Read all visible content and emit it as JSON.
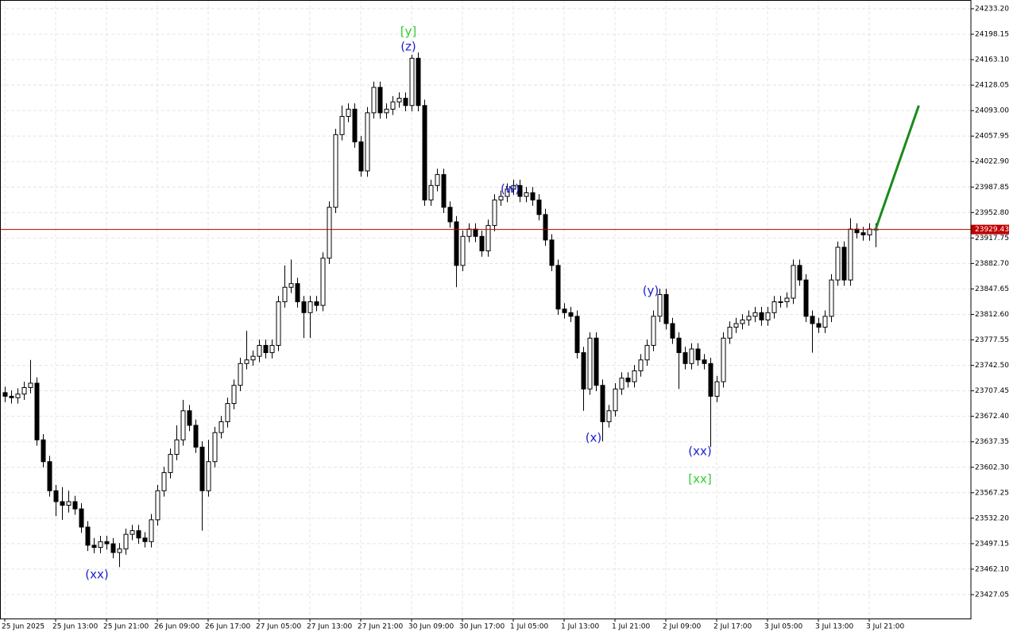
{
  "chart_data": {
    "type": "candlestick",
    "ylim": [
      23394.2,
      24245.2
    ],
    "yticks": [
      {
        "value": 24233.2,
        "label": "24233.20"
      },
      24198.15,
      {
        "value": 24163.1,
        "label": "24163.10"
      },
      24128.05,
      {
        "value": 24093.0,
        "label": "24093.00"
      },
      24057.95,
      {
        "value": 24022.9,
        "label": "24022.90"
      },
      23987.85,
      {
        "value": 23952.8,
        "label": "23952.80"
      },
      23917.75,
      {
        "value": 23882.7,
        "label": "23882.70"
      },
      23847.65,
      {
        "value": 23812.6,
        "label": "23812.60"
      },
      23777.55,
      {
        "value": 23742.5,
        "label": "23742.50"
      },
      23707.45,
      {
        "value": 23672.4,
        "label": "23672.40"
      },
      23637.35,
      {
        "value": 23602.3,
        "label": "23602.30"
      },
      23567.25,
      {
        "value": 23532.2,
        "label": "23532.20"
      },
      23497.15,
      {
        "value": 23462.1,
        "label": "23462.10"
      },
      23427.05
    ],
    "xticks": [
      {
        "value": 0,
        "label": "25 Jun 2025"
      },
      {
        "value": 8,
        "label": "25 Jun 13:00"
      },
      {
        "value": 16,
        "label": "25 Jun 21:00"
      },
      {
        "value": 24,
        "label": "26 Jun 09:00"
      },
      {
        "value": 32,
        "label": "26 Jun 17:00"
      },
      {
        "value": 40,
        "label": "27 Jun 05:00"
      },
      {
        "value": 48,
        "label": "27 Jun 13:00"
      },
      {
        "value": 56,
        "label": "27 Jun 21:00"
      },
      {
        "value": 64,
        "label": "30 Jun 09:00"
      },
      {
        "value": 72,
        "label": "30 Jun 17:00"
      },
      {
        "value": 80,
        "label": "1 Jul 05:00"
      },
      {
        "value": 88,
        "label": "1 Jul 13:00"
      },
      {
        "value": 96,
        "label": "1 Jul 21:00"
      },
      {
        "value": 104,
        "label": "2 Jul 09:00"
      },
      {
        "value": 112,
        "label": "2 Jul 17:00"
      },
      {
        "value": 120,
        "label": "3 Jul 05:00"
      },
      {
        "value": 128,
        "label": "3 Jul 13:00"
      },
      {
        "value": 136,
        "label": "3 Jul 21:00"
      }
    ],
    "grid": true,
    "current_price": 23929.43,
    "current_price_color": "#c00000",
    "forecast": {
      "color": "#1a8a1a",
      "x": [
        137,
        143.8
      ],
      "values": [
        23929.43,
        24100
      ]
    },
    "annotations": [
      {
        "text": "[y]",
        "color": "#32cd32"
      },
      {
        "text": "(z)",
        "color": "#2020d0"
      },
      {
        "text": "(w)",
        "color": "#2020d0"
      },
      {
        "text": "(x)",
        "color": "#2020d0"
      },
      {
        "text": "(y)",
        "color": "#2020d0"
      },
      {
        "text": "(xx)",
        "color": "#2020d0"
      },
      {
        "text": "[xx]",
        "color": "#32cd32"
      },
      {
        "text": "(xx)",
        "color": "#2020d0"
      }
    ],
    "ohlc": [
      [
        23705,
        23713,
        23692,
        23700
      ],
      [
        23700,
        23708,
        23690,
        23698
      ],
      [
        23698,
        23711,
        23690,
        23703
      ],
      [
        23703,
        23720,
        23695,
        23712
      ],
      [
        23712,
        23750,
        23704,
        23718
      ],
      [
        23718,
        23726,
        23632,
        23640
      ],
      [
        23640,
        23648,
        23602,
        23610
      ],
      [
        23610,
        23618,
        23562,
        23570
      ],
      [
        23570,
        23578,
        23535,
        23555
      ],
      [
        23555,
        23575,
        23530,
        23550
      ],
      [
        23550,
        23570,
        23540,
        23555
      ],
      [
        23555,
        23563,
        23537,
        23545
      ],
      [
        23545,
        23553,
        23512,
        23520
      ],
      [
        23520,
        23528,
        23487,
        23495
      ],
      [
        23495,
        23505,
        23484,
        23492
      ],
      [
        23492,
        23508,
        23484,
        23500
      ],
      [
        23500,
        23508,
        23489,
        23497
      ],
      [
        23497,
        23505,
        23477,
        23485
      ],
      [
        23485,
        23498,
        23465,
        23490
      ],
      [
        23490,
        23518,
        23482,
        23510
      ],
      [
        23510,
        23523,
        23502,
        23515
      ],
      [
        23515,
        23523,
        23497,
        23505
      ],
      [
        23505,
        23513,
        23492,
        23500
      ],
      [
        23500,
        23538,
        23492,
        23530
      ],
      [
        23530,
        23578,
        23522,
        23570
      ],
      [
        23570,
        23603,
        23562,
        23595
      ],
      [
        23595,
        23628,
        23587,
        23620
      ],
      [
        23620,
        23660,
        23612,
        23640
      ],
      [
        23640,
        23695,
        23632,
        23680
      ],
      [
        23680,
        23688,
        23652,
        23660
      ],
      [
        23660,
        23668,
        23622,
        23630
      ],
      [
        23630,
        23638,
        23515,
        23570
      ],
      [
        23570,
        23640,
        23562,
        23610
      ],
      [
        23610,
        23658,
        23602,
        23650
      ],
      [
        23650,
        23673,
        23642,
        23665
      ],
      [
        23665,
        23698,
        23657,
        23690
      ],
      [
        23690,
        23723,
        23682,
        23715
      ],
      [
        23715,
        23753,
        23707,
        23745
      ],
      [
        23745,
        23790,
        23737,
        23750
      ],
      [
        23750,
        23763,
        23742,
        23755
      ],
      [
        23755,
        23778,
        23747,
        23770
      ],
      [
        23770,
        23778,
        23752,
        23760
      ],
      [
        23760,
        23778,
        23752,
        23770
      ],
      [
        23770,
        23838,
        23762,
        23830
      ],
      [
        23830,
        23880,
        23822,
        23850
      ],
      [
        23850,
        23888,
        23842,
        23855
      ],
      [
        23855,
        23863,
        23822,
        23830
      ],
      [
        23830,
        23838,
        23780,
        23815
      ],
      [
        23815,
        23838,
        23780,
        23830
      ],
      [
        23830,
        23838,
        23817,
        23825
      ],
      [
        23825,
        23898,
        23817,
        23890
      ],
      [
        23890,
        23968,
        23882,
        23960
      ],
      [
        23960,
        24068,
        23952,
        24060
      ],
      [
        24060,
        24100,
        24052,
        24085
      ],
      [
        24085,
        24103,
        24077,
        24095
      ],
      [
        24095,
        24103,
        24042,
        24050
      ],
      [
        24050,
        24058,
        24002,
        24010
      ],
      [
        24010,
        24098,
        24002,
        24090
      ],
      [
        24090,
        24133,
        24082,
        24125
      ],
      [
        24125,
        24133,
        24082,
        24090
      ],
      [
        24090,
        24103,
        24082,
        24095
      ],
      [
        24095,
        24113,
        24087,
        24105
      ],
      [
        24105,
        24118,
        24097,
        24110
      ],
      [
        24110,
        24118,
        24092,
        24100
      ],
      [
        24100,
        24170,
        24092,
        24165
      ],
      [
        24165,
        24173,
        24092,
        24100
      ],
      [
        24100,
        24108,
        23962,
        23970
      ],
      [
        23970,
        23998,
        23962,
        23990
      ],
      [
        23990,
        24013,
        23982,
        24005
      ],
      [
        24005,
        24013,
        23952,
        23960
      ],
      [
        23960,
        23968,
        23932,
        23940
      ],
      [
        23940,
        23948,
        23850,
        23880
      ],
      [
        23880,
        23928,
        23872,
        23920
      ],
      [
        23920,
        23938,
        23912,
        23930
      ],
      [
        23930,
        23938,
        23912,
        23920
      ],
      [
        23920,
        23928,
        23892,
        23900
      ],
      [
        23900,
        23943,
        23892,
        23935
      ],
      [
        23935,
        23978,
        23927,
        23970
      ],
      [
        23970,
        23983,
        23962,
        23975
      ],
      [
        23975,
        23993,
        23967,
        23985
      ],
      [
        23985,
        23998,
        23977,
        23990
      ],
      [
        23990,
        23998,
        23967,
        23975
      ],
      [
        23975,
        23988,
        23967,
        23980
      ],
      [
        23980,
        23988,
        23962,
        23970
      ],
      [
        23970,
        23978,
        23942,
        23950
      ],
      [
        23950,
        23958,
        23907,
        23915
      ],
      [
        23915,
        23923,
        23872,
        23880
      ],
      [
        23880,
        23888,
        23812,
        23820
      ],
      [
        23820,
        23828,
        23807,
        23815
      ],
      [
        23815,
        23823,
        23802,
        23810
      ],
      [
        23810,
        23818,
        23752,
        23760
      ],
      [
        23760,
        23768,
        23680,
        23710
      ],
      [
        23710,
        23788,
        23702,
        23780
      ],
      [
        23780,
        23788,
        23707,
        23715
      ],
      [
        23715,
        23723,
        23638,
        23665
      ],
      [
        23665,
        23688,
        23657,
        23680
      ],
      [
        23680,
        23718,
        23672,
        23710
      ],
      [
        23710,
        23733,
        23702,
        23725
      ],
      [
        23725,
        23733,
        23712,
        23720
      ],
      [
        23720,
        23743,
        23712,
        23735
      ],
      [
        23735,
        23758,
        23727,
        23750
      ],
      [
        23750,
        23778,
        23742,
        23770
      ],
      [
        23770,
        23818,
        23762,
        23810
      ],
      [
        23810,
        23848,
        23802,
        23840
      ],
      [
        23840,
        23848,
        23792,
        23800
      ],
      [
        23800,
        23808,
        23772,
        23780
      ],
      [
        23780,
        23788,
        23710,
        23760
      ],
      [
        23760,
        23768,
        23737,
        23745
      ],
      [
        23745,
        23773,
        23737,
        23765
      ],
      [
        23765,
        23773,
        23742,
        23750
      ],
      [
        23750,
        23758,
        23737,
        23745
      ],
      [
        23745,
        23753,
        23630,
        23700
      ],
      [
        23700,
        23728,
        23692,
        23720
      ],
      [
        23720,
        23788,
        23712,
        23780
      ],
      [
        23780,
        23803,
        23772,
        23795
      ],
      [
        23795,
        23808,
        23787,
        23800
      ],
      [
        23800,
        23813,
        23792,
        23805
      ],
      [
        23805,
        23818,
        23797,
        23810
      ],
      [
        23810,
        23823,
        23802,
        23815
      ],
      [
        23815,
        23823,
        23797,
        23805
      ],
      [
        23805,
        23823,
        23797,
        23815
      ],
      [
        23815,
        23838,
        23807,
        23830
      ],
      [
        23830,
        23838,
        23822,
        23830
      ],
      [
        23830,
        23843,
        23822,
        23835
      ],
      [
        23835,
        23888,
        23827,
        23880
      ],
      [
        23880,
        23888,
        23852,
        23860
      ],
      [
        23860,
        23868,
        23802,
        23810
      ],
      [
        23810,
        23818,
        23760,
        23800
      ],
      [
        23800,
        23808,
        23787,
        23795
      ],
      [
        23795,
        23818,
        23787,
        23810
      ],
      [
        23810,
        23868,
        23802,
        23860
      ],
      [
        23860,
        23913,
        23852,
        23905
      ],
      [
        23905,
        23913,
        23852,
        23860
      ],
      [
        23860,
        23945,
        23852,
        23930
      ],
      [
        23930,
        23938,
        23917,
        23925
      ],
      [
        23925,
        23933,
        23914,
        23922
      ],
      [
        23922,
        23938,
        23914,
        23930
      ],
      [
        23930,
        23938,
        23905,
        23929.43
      ]
    ]
  }
}
